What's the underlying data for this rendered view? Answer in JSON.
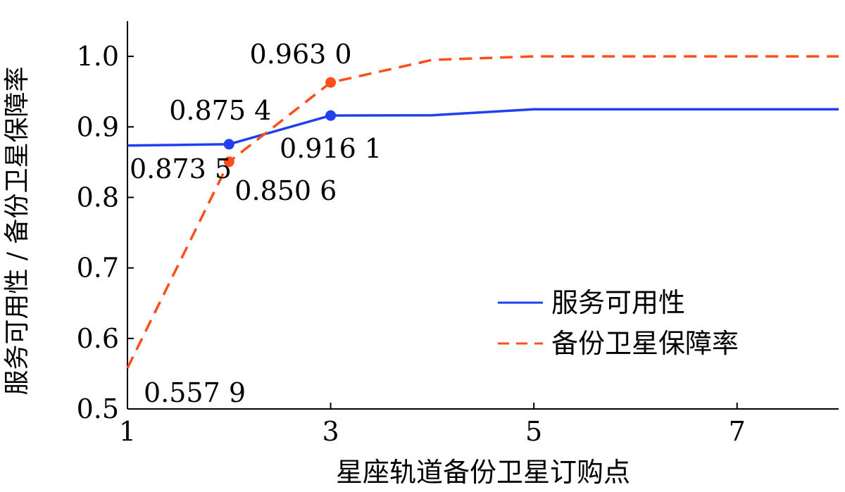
{
  "chart_data": {
    "type": "line",
    "xlabel": "星座轨道备份卫星订购点",
    "ylabel": "服务可用性 / 备份卫星保障率",
    "xlim": [
      1,
      8
    ],
    "ylim": [
      0.5,
      1.05
    ],
    "x_ticks": [
      1,
      3,
      5,
      7
    ],
    "x_tick_labels": [
      "1",
      "3",
      "5",
      "7"
    ],
    "y_ticks": [
      0.5,
      0.6,
      0.7,
      0.8,
      0.9,
      1.0
    ],
    "y_tick_labels": [
      "0.5",
      "0.6",
      "0.7",
      "0.8",
      "0.9",
      "1.0"
    ],
    "grid": false,
    "legend_position": "bottom-right",
    "series": [
      {
        "name": "服务可用性",
        "color": "#1f3ff0",
        "line_style": "solid",
        "x": [
          1,
          2,
          3,
          4,
          5,
          6,
          7,
          8
        ],
        "y": [
          0.8735,
          0.8754,
          0.9161,
          0.9165,
          0.925,
          0.925,
          0.925,
          0.925
        ],
        "markers": [
          {
            "x": 2,
            "y": 0.8754
          },
          {
            "x": 3,
            "y": 0.9161
          }
        ]
      },
      {
        "name": "备份卫星保障率",
        "color": "#ff4e1a",
        "line_style": "dashed",
        "x": [
          1,
          2,
          3,
          4,
          5,
          6,
          7,
          8
        ],
        "y": [
          0.5579,
          0.8506,
          0.963,
          0.995,
          1.0,
          1.0,
          1.0,
          1.0
        ],
        "markers": [
          {
            "x": 2,
            "y": 0.8506
          },
          {
            "x": 3,
            "y": 0.963
          }
        ]
      }
    ],
    "annotations": [
      {
        "text": "0.873 5",
        "x": 1,
        "y": 0.8735,
        "series": 0
      },
      {
        "text": "0.875 4",
        "x": 2,
        "y": 0.8754,
        "series": 0
      },
      {
        "text": "0.916 1",
        "x": 3,
        "y": 0.9161,
        "series": 0
      },
      {
        "text": "0.557 9",
        "x": 1,
        "y": 0.5579,
        "series": 1
      },
      {
        "text": "0.850 6",
        "x": 2,
        "y": 0.8506,
        "series": 1
      },
      {
        "text": "0.963 0",
        "x": 3,
        "y": 0.963,
        "series": 1
      }
    ]
  }
}
